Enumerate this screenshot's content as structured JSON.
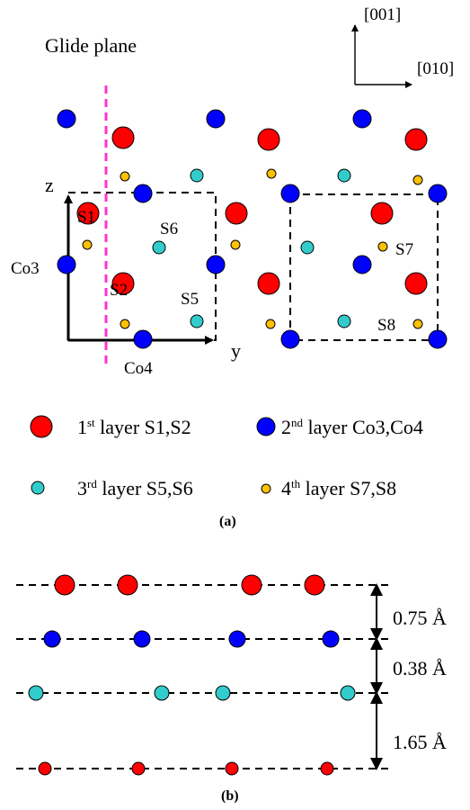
{
  "panel_a": {
    "glide_plane_label": "Glide plane",
    "direction_up": "[001]",
    "direction_right": "[010]",
    "axis_z": "z",
    "axis_y": "y",
    "atom_labels": {
      "s1": "S1",
      "s2": "S2",
      "s5": "S5",
      "s6": "S6",
      "s7": "S7",
      "s8": "S8",
      "co3": "Co3",
      "co4": "Co4"
    },
    "caption": "(a)"
  },
  "legend": {
    "layer1_num": "1",
    "layer1_sup": "st",
    "layer1_text": " layer S1,S2",
    "layer2_num": "2",
    "layer2_sup": "nd",
    "layer2_text": " layer Co3,Co4",
    "layer3_num": "3",
    "layer3_sup": "rd",
    "layer3_text": " layer S5,S6",
    "layer4_num": "4",
    "layer4_sup": "th",
    "layer4_text": " layer S7,S8"
  },
  "panel_b": {
    "spacing_1": "0.75 Å",
    "spacing_2": "0.38 Å",
    "spacing_3": "1.65 Å",
    "caption": "(b)"
  },
  "colors": {
    "layer1": "#ff0000",
    "layer2": "#0000ff",
    "layer3": "#33cccc",
    "layer4": "#ffc000",
    "glide_plane": "#ff33cc"
  }
}
